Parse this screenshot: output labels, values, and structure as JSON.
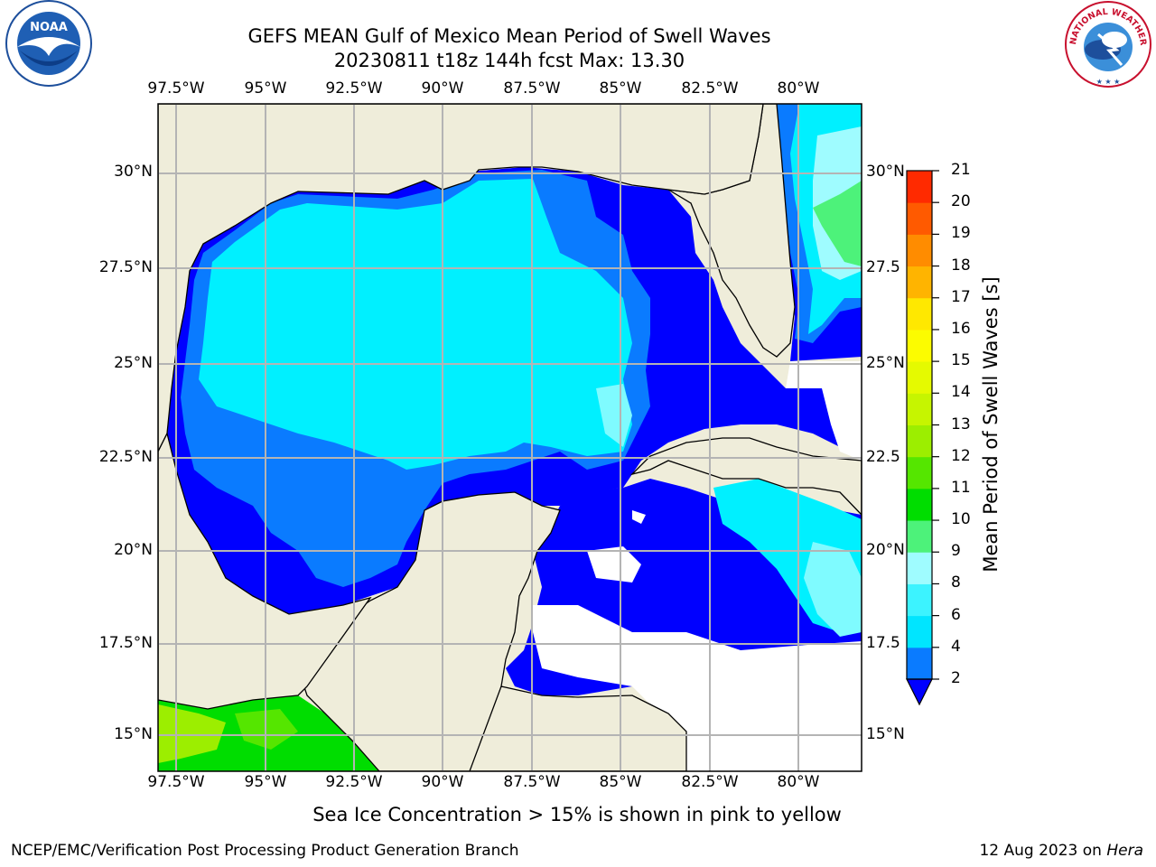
{
  "title": {
    "line1": "GEFS MEAN Gulf of Mexico Mean Period of Swell Waves",
    "line2": "20230811 t18z 144h fcst   Max: 13.30"
  },
  "axes": {
    "lon_labels": [
      "97.5°W",
      "95°W",
      "92.5°W",
      "90°W",
      "87.5°W",
      "85°W",
      "82.5°W",
      "80°W"
    ],
    "lat_labels_left": [
      "30°N",
      "27.5°N",
      "25°N",
      "22.5°N",
      "20°N",
      "17.5°N",
      "15°N"
    ],
    "lat_labels_right": [
      "30°N",
      "27.5",
      "25°N",
      "22.5",
      "20°N",
      "17.5",
      "15°N"
    ],
    "lon_values": [
      -97.5,
      -95,
      -92.5,
      -90,
      -87.5,
      -85,
      -82.5,
      -80
    ],
    "lat_values": [
      30,
      27.5,
      25,
      22.5,
      20,
      17.5,
      15
    ],
    "lon_range": [
      -98,
      -78.3
    ],
    "lat_range": [
      14,
      31.8
    ],
    "grid": true
  },
  "colorbar": {
    "label": "Mean Period of Swell Waves [s]",
    "ticks": [
      "2",
      "4",
      "6",
      "8",
      "9",
      "10",
      "11",
      "12",
      "13",
      "14",
      "15",
      "16",
      "17",
      "18",
      "19",
      "20",
      "21"
    ],
    "colors": [
      "#0a7bff",
      "#00e5ff",
      "#3cf3ff",
      "#9ffcff",
      "#4df27a",
      "#00dd00",
      "#55e600",
      "#9cee00",
      "#c6f500",
      "#e5fa00",
      "#fcfc00",
      "#ffe800",
      "#ffb400",
      "#ff8c00",
      "#ff5a00",
      "#ff2a00"
    ],
    "extend_color": "#0000ff",
    "min_extend": true
  },
  "ice_note": "Sea Ice Concentration > 15% is shown in pink to yellow",
  "footer": {
    "left": "NCEP/EMC/Verification Post Processing Product Generation Branch",
    "right_date": "12 Aug 2023 on",
    "right_machine": "Hera"
  },
  "logos": {
    "noaa_text": "NOAA",
    "nws_text": "NATIONAL WEATHER SERVICE"
  },
  "colors": {
    "land": "#efedda",
    "no_data": "#ffffff",
    "grid": "#b4b4b4"
  }
}
